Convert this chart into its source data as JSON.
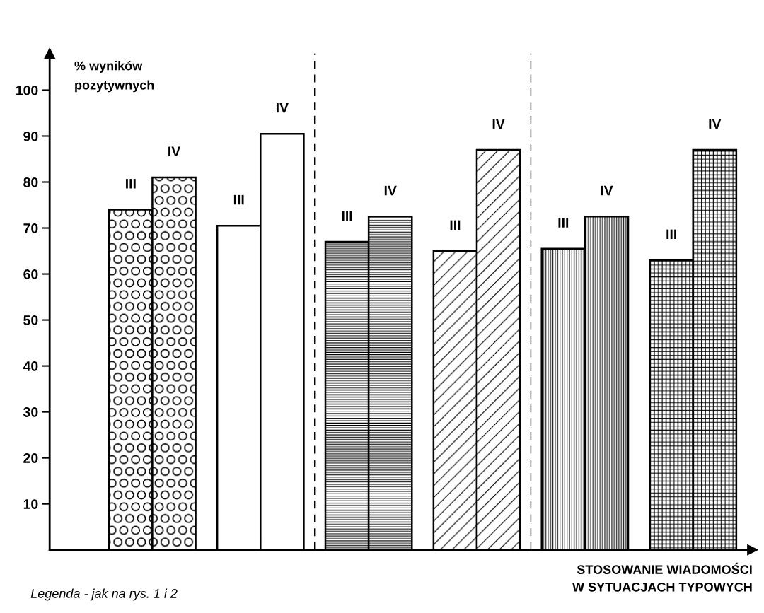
{
  "chart_data": {
    "type": "bar",
    "ylabel": "% wyników\npozytywnych",
    "xlabel": "STOSOWANIE WIADOMOŚCI\nW SYTUACJACH TYPOWYCH",
    "categories": [
      null,
      null,
      null,
      null,
      null,
      null
    ],
    "series": [
      {
        "name": "III",
        "colors": [
          "#000000",
          "#ffffff",
          "#000000",
          "#000000",
          "#000000",
          "#000000"
        ],
        "values": [
          74,
          70.5,
          67,
          65,
          65.5,
          63
        ]
      },
      {
        "name": "IV",
        "colors": [
          "#000000",
          "#ffffff",
          "#000000",
          "#000000",
          "#000000",
          "#000000"
        ],
        "values": [
          81,
          90.5,
          72.5,
          87,
          72.5,
          87
        ]
      }
    ],
    "ylim": [
      0,
      108
    ],
    "yticks": [
      10,
      20,
      30,
      40,
      50,
      60,
      70,
      80,
      90,
      100
    ],
    "annotations": [
      "Legenda - jak na rys. 1 i 2"
    ],
    "grid": false,
    "legend": false
  }
}
